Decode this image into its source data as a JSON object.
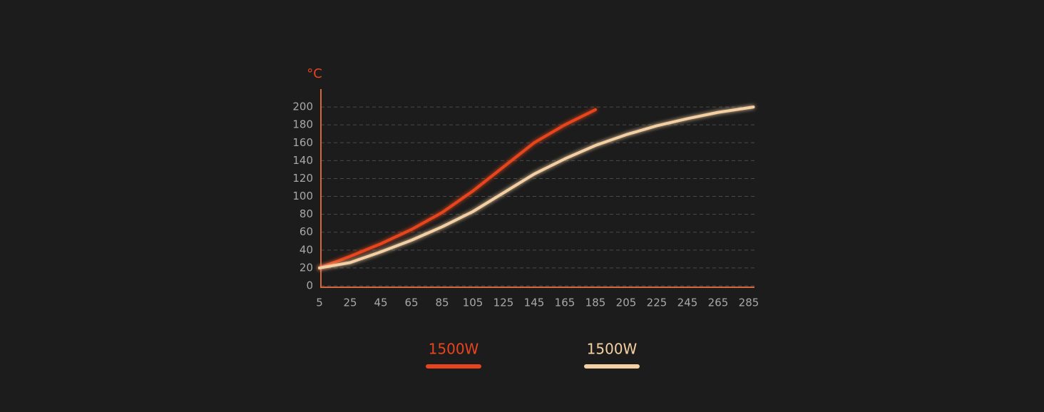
{
  "chart_data": {
    "type": "line",
    "y_unit": "°C",
    "x": [
      5,
      25,
      45,
      65,
      85,
      105,
      125,
      145,
      165,
      185,
      205,
      225,
      245,
      265,
      288
    ],
    "series": [
      {
        "name": "1500W",
        "color": "#e8441f",
        "values": [
          20,
          33,
          47,
          63,
          82,
          106,
          133,
          160,
          180,
          197,
          null,
          null,
          null,
          null,
          null
        ]
      },
      {
        "name": "1500W",
        "color": "#f3cfa3",
        "values": [
          20,
          26,
          38,
          51,
          66,
          83,
          104,
          125,
          142,
          157,
          169,
          179,
          187,
          194,
          200
        ]
      }
    ],
    "xlim": [
      5,
      288
    ],
    "ylim": [
      0,
      220
    ],
    "xticks": [
      5,
      25,
      45,
      65,
      85,
      105,
      125,
      145,
      165,
      185,
      205,
      225,
      245,
      265,
      285
    ],
    "yticks": [
      0,
      20,
      40,
      60,
      80,
      100,
      120,
      140,
      160,
      180,
      200
    ],
    "grid": true,
    "axis_color": "#d9653a"
  }
}
